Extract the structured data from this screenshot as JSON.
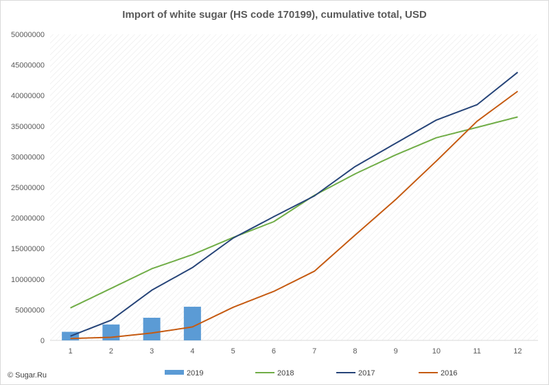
{
  "chart_data": {
    "type": "bar",
    "title": "Import of white sugar (HS code 170199), cumulative total, USD",
    "xlabel": "",
    "ylabel": "",
    "categories": [
      "1",
      "2",
      "3",
      "4",
      "5",
      "6",
      "7",
      "8",
      "9",
      "10",
      "11",
      "12"
    ],
    "ylim": [
      0,
      50000000
    ],
    "yticks": [
      0,
      5000000,
      10000000,
      15000000,
      20000000,
      25000000,
      30000000,
      35000000,
      40000000,
      45000000,
      50000000
    ],
    "grid": "diagonal hatched plot area",
    "legend_position": "bottom",
    "series": [
      {
        "name": "2019",
        "type": "bar",
        "color": "#5b9bd5",
        "values": [
          1400000,
          2600000,
          3700000,
          5500000,
          null,
          null,
          null,
          null,
          null,
          null,
          null,
          null
        ]
      },
      {
        "name": "2018",
        "type": "line",
        "color": "#70ad47",
        "values": [
          5300000,
          8500000,
          11700000,
          14000000,
          16800000,
          19400000,
          23700000,
          27200000,
          30300000,
          33100000,
          34800000,
          36500000
        ]
      },
      {
        "name": "2017",
        "type": "line",
        "color": "#264478",
        "values": [
          700000,
          3300000,
          8200000,
          11900000,
          16700000,
          20200000,
          23600000,
          28400000,
          32200000,
          36000000,
          38500000,
          43800000
        ]
      },
      {
        "name": "2016",
        "type": "line",
        "color": "#c55a11",
        "values": [
          300000,
          500000,
          1200000,
          2200000,
          5400000,
          8000000,
          11300000,
          17200000,
          23000000,
          29300000,
          35800000,
          40700000
        ]
      }
    ]
  },
  "credit": "© Sugar.Ru"
}
